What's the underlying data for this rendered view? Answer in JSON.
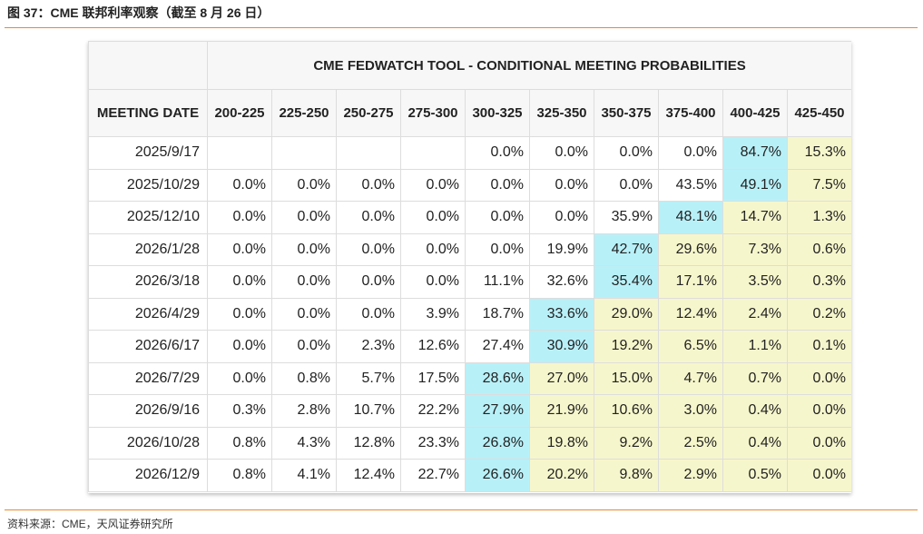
{
  "header": {
    "title": "图 37：CME 联邦利率观察（截至 8 月 26 日）"
  },
  "table": {
    "title": "CME FEDWATCH TOOL - CONDITIONAL MEETING PROBABILITIES",
    "columns": [
      "MEETING DATE",
      "200-225",
      "225-250",
      "250-275",
      "275-300",
      "300-325",
      "325-350",
      "350-375",
      "375-400",
      "400-425",
      "425-450"
    ],
    "rows": [
      [
        "2025/9/17",
        null,
        null,
        null,
        null,
        "0.0%",
        "0.0%",
        "0.0%",
        "0.0%",
        "84.7%",
        "15.3%"
      ],
      [
        "2025/10/29",
        "0.0%",
        "0.0%",
        "0.0%",
        "0.0%",
        "0.0%",
        "0.0%",
        "0.0%",
        "43.5%",
        "49.1%",
        "7.5%"
      ],
      [
        "2025/12/10",
        "0.0%",
        "0.0%",
        "0.0%",
        "0.0%",
        "0.0%",
        "0.0%",
        "35.9%",
        "48.1%",
        "14.7%",
        "1.3%"
      ],
      [
        "2026/1/28",
        "0.0%",
        "0.0%",
        "0.0%",
        "0.0%",
        "0.0%",
        "19.9%",
        "42.7%",
        "29.6%",
        "7.3%",
        "0.6%"
      ],
      [
        "2026/3/18",
        "0.0%",
        "0.0%",
        "0.0%",
        "0.0%",
        "11.1%",
        "32.6%",
        "35.4%",
        "17.1%",
        "3.5%",
        "0.3%"
      ],
      [
        "2026/4/29",
        "0.0%",
        "0.0%",
        "0.0%",
        "3.9%",
        "18.7%",
        "33.6%",
        "29.0%",
        "12.4%",
        "2.4%",
        "0.2%"
      ],
      [
        "2026/6/17",
        "0.0%",
        "0.0%",
        "2.3%",
        "12.6%",
        "27.4%",
        "30.9%",
        "19.2%",
        "6.5%",
        "1.1%",
        "0.1%"
      ],
      [
        "2026/7/29",
        "0.0%",
        "0.8%",
        "5.7%",
        "17.5%",
        "28.6%",
        "27.0%",
        "15.0%",
        "4.7%",
        "0.7%",
        "0.0%"
      ],
      [
        "2026/9/16",
        "0.3%",
        "2.8%",
        "10.7%",
        "22.2%",
        "27.9%",
        "21.9%",
        "10.6%",
        "3.0%",
        "0.4%",
        "0.0%"
      ],
      [
        "2026/10/28",
        "0.8%",
        "4.3%",
        "12.8%",
        "23.3%",
        "26.8%",
        "19.8%",
        "9.2%",
        "2.5%",
        "0.4%",
        "0.0%"
      ],
      [
        "2026/12/9",
        "0.8%",
        "4.1%",
        "12.4%",
        "22.7%",
        "26.6%",
        "20.2%",
        "9.8%",
        "2.9%",
        "0.5%",
        "0.0%"
      ]
    ]
  },
  "footer": {
    "source": "资料来源：CME，天风证券研究所"
  }
}
